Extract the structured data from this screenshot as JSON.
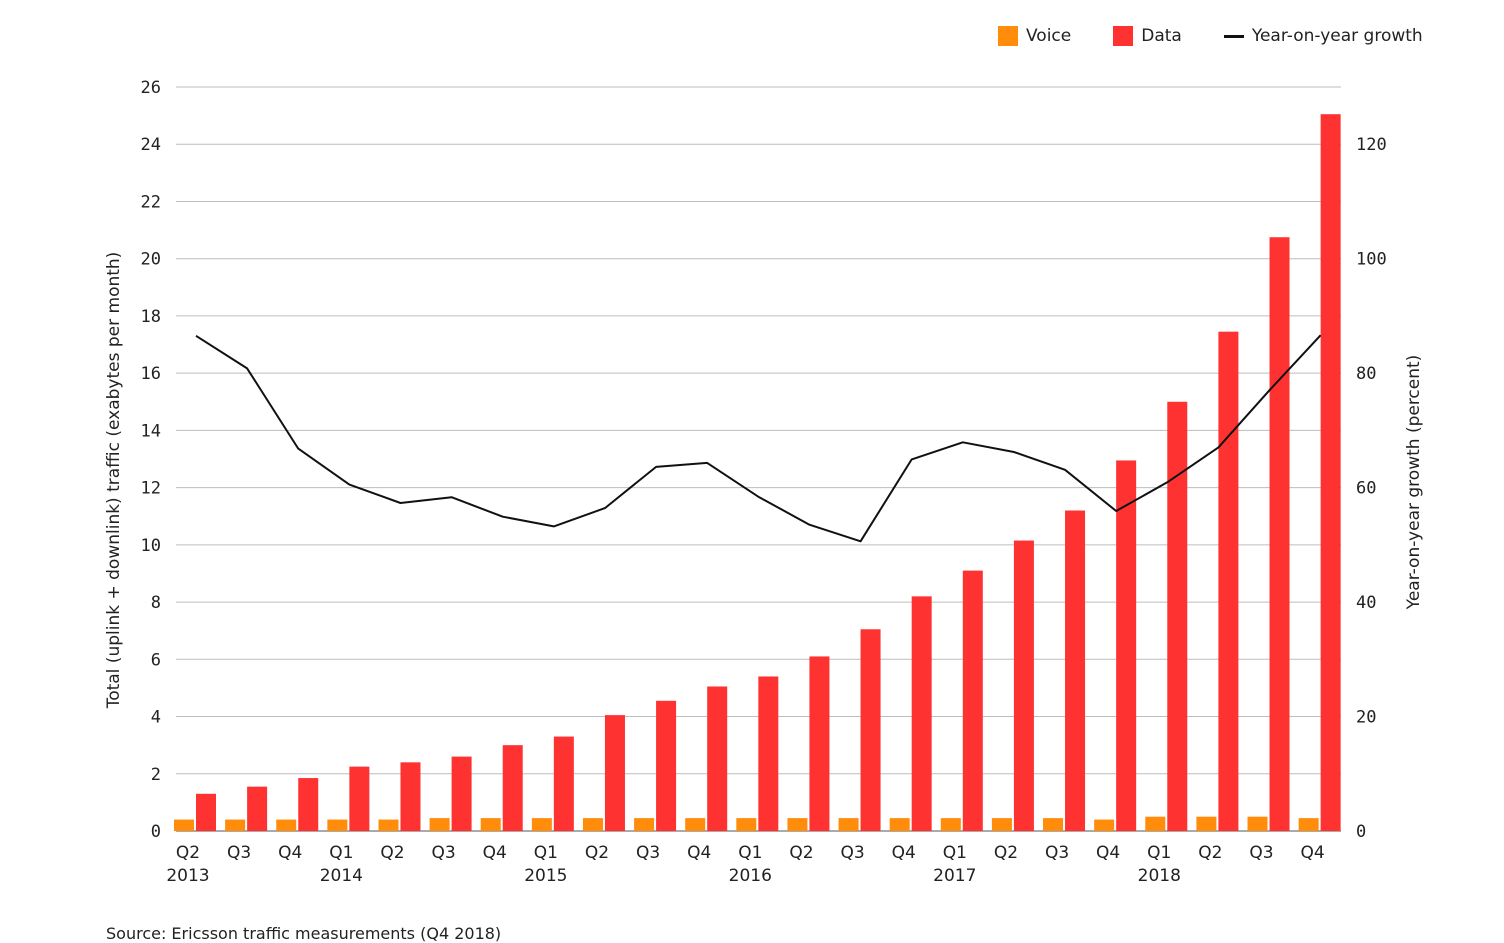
{
  "legend": {
    "voice_label": "Voice",
    "data_label": "Data",
    "growth_label": "Year-on-year growth"
  },
  "source": "Source: Ericsson traffic measurements (Q4 2018)",
  "chart_data": {
    "type": "bar",
    "categories": [
      "Q2",
      "Q3",
      "Q4",
      "Q1",
      "Q2",
      "Q3",
      "Q4",
      "Q1",
      "Q2",
      "Q3",
      "Q4",
      "Q1",
      "Q2",
      "Q3",
      "Q4",
      "Q1",
      "Q2",
      "Q3",
      "Q4",
      "Q1",
      "Q2",
      "Q3",
      "Q4"
    ],
    "year_labels": [
      {
        "index": 0,
        "label": "2013"
      },
      {
        "index": 3,
        "label": "2014"
      },
      {
        "index": 7,
        "label": "2015"
      },
      {
        "index": 11,
        "label": "2016"
      },
      {
        "index": 15,
        "label": "2017"
      },
      {
        "index": 19,
        "label": "2018"
      }
    ],
    "series": [
      {
        "name": "Voice",
        "type": "bar",
        "axis": "left",
        "color": "#ff8c0a",
        "values": [
          0.4,
          0.4,
          0.4,
          0.4,
          0.4,
          0.45,
          0.45,
          0.45,
          0.45,
          0.45,
          0.45,
          0.45,
          0.45,
          0.45,
          0.45,
          0.45,
          0.45,
          0.45,
          0.4,
          0.5,
          0.5,
          0.5,
          0.45
        ]
      },
      {
        "name": "Data",
        "type": "bar",
        "axis": "left",
        "color": "#ff3232",
        "values": [
          1.3,
          1.55,
          1.85,
          2.25,
          2.4,
          2.6,
          3.0,
          3.3,
          4.05,
          4.55,
          5.05,
          5.4,
          6.1,
          7.05,
          8.2,
          9.1,
          10.15,
          11.2,
          12.95,
          15.0,
          17.45,
          20.75,
          25.05
        ]
      },
      {
        "name": "Year-on-year growth",
        "type": "line",
        "axis": "right",
        "color": "#111111",
        "values": [
          86.5,
          80.8,
          66.8,
          60.5,
          57.3,
          58.3,
          54.9,
          53.2,
          56.4,
          63.6,
          64.3,
          58.4,
          53.5,
          50.6,
          64.9,
          67.9,
          66.2,
          63.1,
          55.9,
          60.9,
          67.0,
          77.0,
          86.6
        ]
      }
    ],
    "xlabel": "",
    "ylabel": "Total (uplink + downlink) traffic (exabytes per month)",
    "ylim": [
      0,
      26
    ],
    "yticks": [
      0,
      2,
      4,
      6,
      8,
      10,
      12,
      14,
      16,
      18,
      20,
      22,
      24,
      26
    ],
    "y2label": "Year-on-year growth (percent)",
    "y2lim": [
      0,
      120
    ],
    "y2ticks": [
      0,
      20,
      40,
      60,
      80,
      100,
      120
    ],
    "grid": true,
    "legend_position": "top-right"
  }
}
